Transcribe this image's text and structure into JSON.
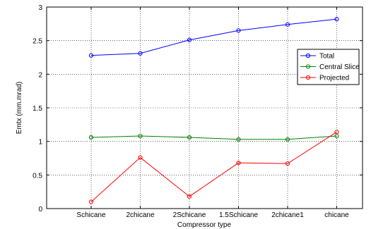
{
  "chart_data": {
    "type": "line",
    "title": "",
    "xlabel": "Compressor type",
    "ylabel": "Emtx (mm.mrad)",
    "categories": [
      "Schicane",
      "2chicane",
      "2Schicane",
      "1.5Schicane",
      "2chicane1",
      "chicane"
    ],
    "ylim": [
      0,
      3
    ],
    "yticks": [
      0,
      0.5,
      1,
      1.5,
      2,
      2.5,
      3
    ],
    "ytick_labels": [
      "0",
      "0.5",
      "1",
      "1.5",
      "2",
      "2.5",
      "3"
    ],
    "grid": true,
    "legend_position": "right",
    "series": [
      {
        "name": "Total",
        "color": "#0000ff",
        "marker": "circle",
        "values": [
          2.28,
          2.31,
          2.51,
          2.65,
          2.74,
          2.82
        ]
      },
      {
        "name": "Central Slice",
        "color": "#008000",
        "marker": "circle",
        "values": [
          1.06,
          1.08,
          1.06,
          1.03,
          1.03,
          1.08
        ]
      },
      {
        "name": "Projected",
        "color": "#ff0000",
        "marker": "circle",
        "values": [
          0.1,
          0.76,
          0.18,
          0.68,
          0.67,
          1.14
        ]
      }
    ]
  }
}
